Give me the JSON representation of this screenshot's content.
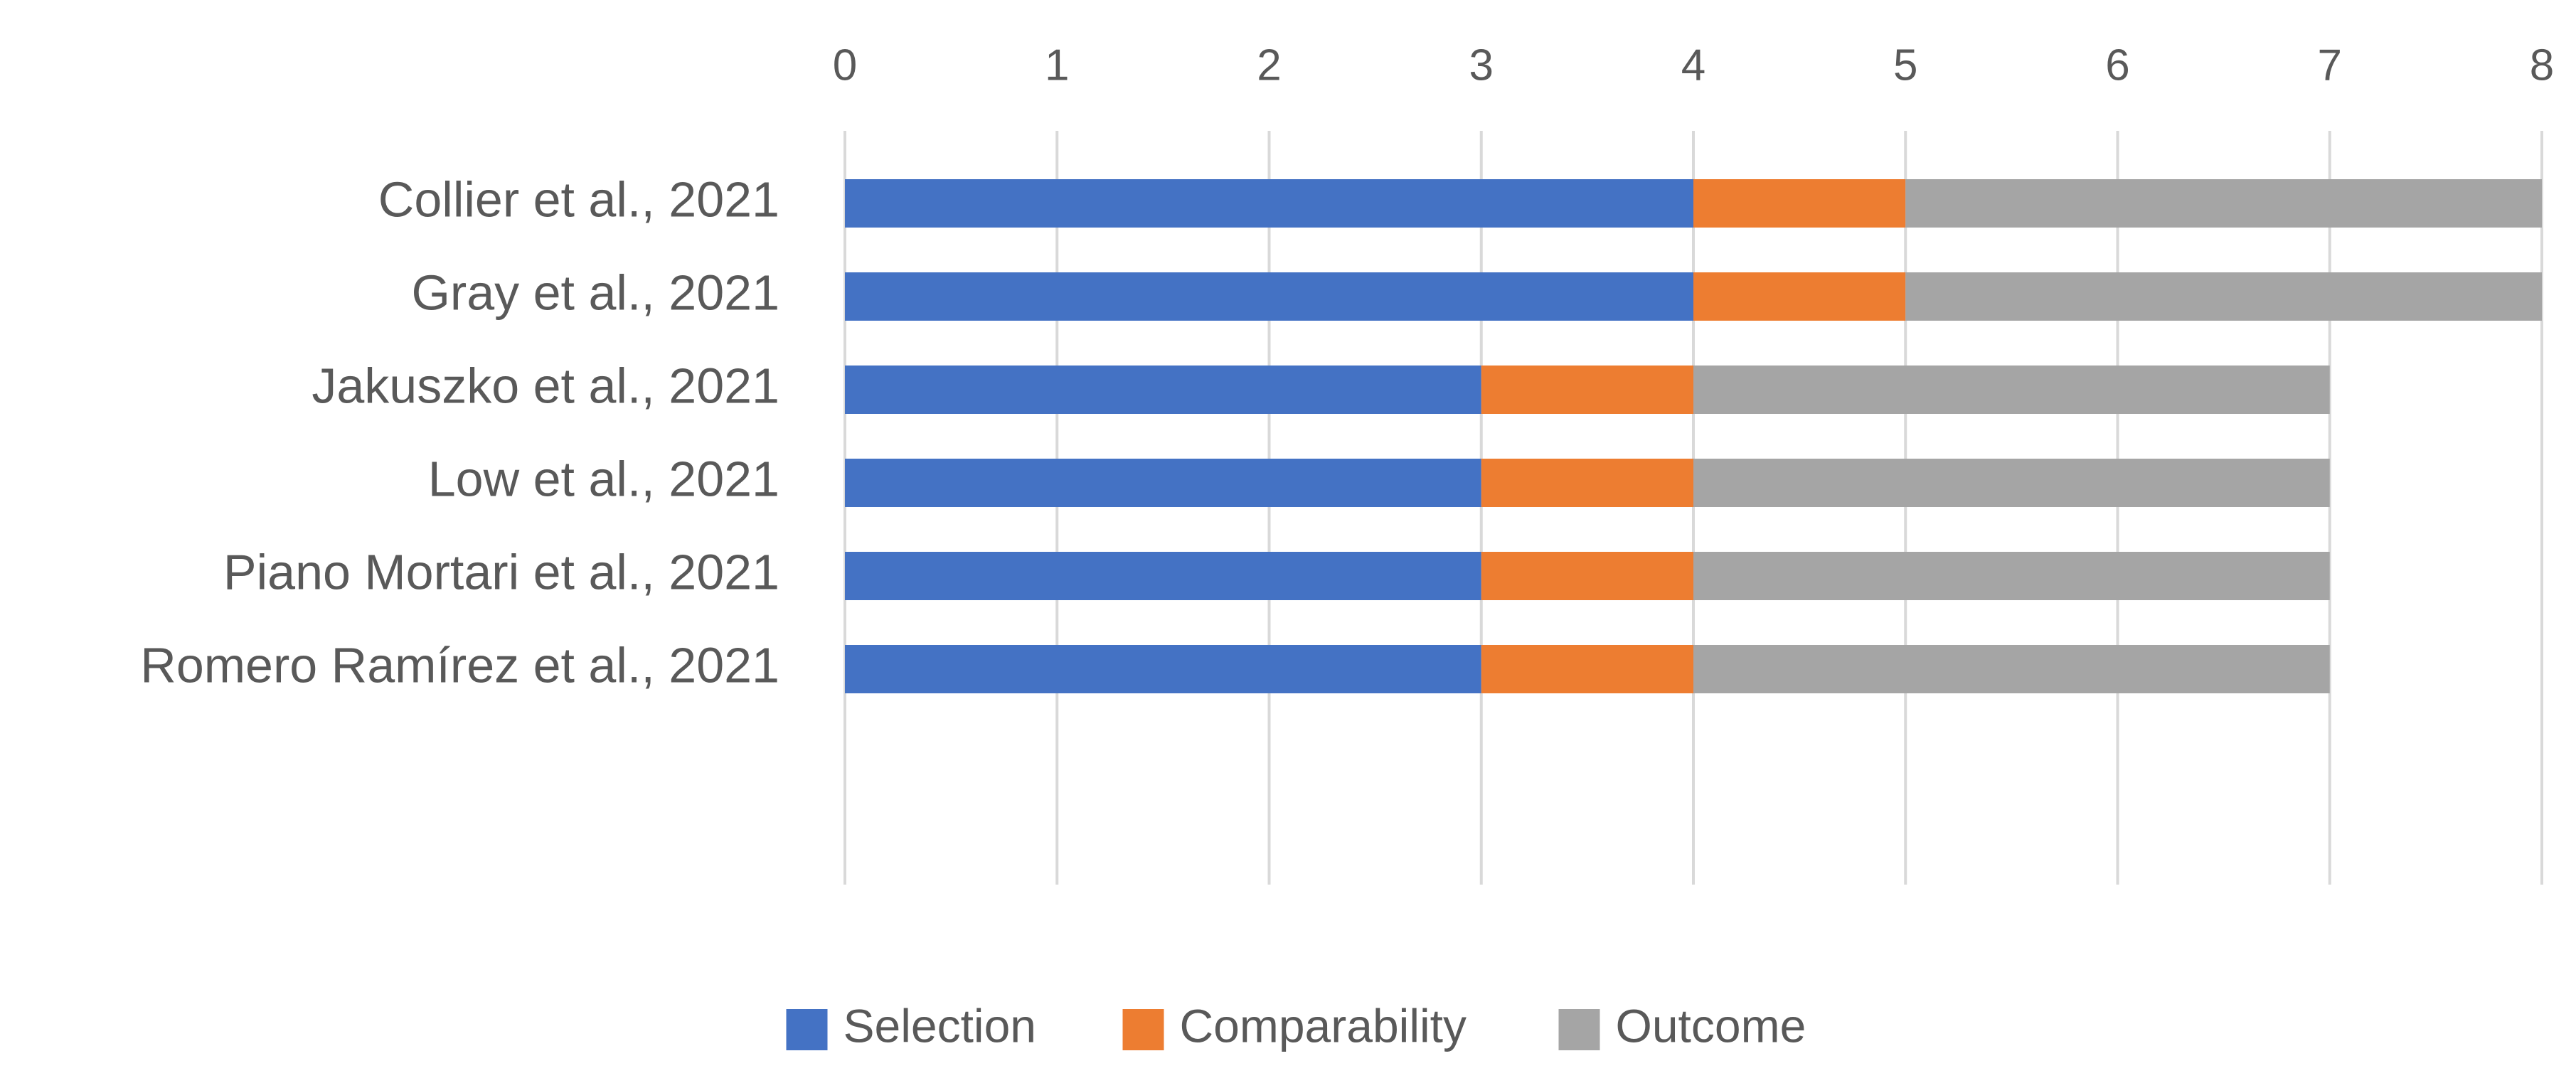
{
  "chart_data": {
    "type": "bar",
    "orientation": "horizontal",
    "stacked": true,
    "title": "",
    "xlabel": "",
    "ylabel": "",
    "xlim": [
      0,
      8
    ],
    "x_ticks": [
      "0",
      "1",
      "2",
      "3",
      "4",
      "5",
      "6",
      "7",
      "8"
    ],
    "x_axis_position": "top",
    "grid": true,
    "legend_position": "bottom",
    "categories": [
      "Collier et al., 2021",
      "Gray et al., 2021",
      "Jakuszko et al., 2021",
      "Low et al., 2021",
      "Piano Mortari et al., 2021",
      "Romero Ramírez et al., 2021"
    ],
    "series": [
      {
        "name": "Selection",
        "color": "#4472C4",
        "values": [
          4,
          4,
          3,
          3,
          3,
          3
        ]
      },
      {
        "name": "Comparability",
        "color": "#ED7D31",
        "values": [
          1,
          1,
          1,
          1,
          1,
          1
        ]
      },
      {
        "name": "Outcome",
        "color": "#A5A5A5",
        "values": [
          3,
          3,
          3,
          3,
          3,
          3
        ]
      }
    ]
  }
}
